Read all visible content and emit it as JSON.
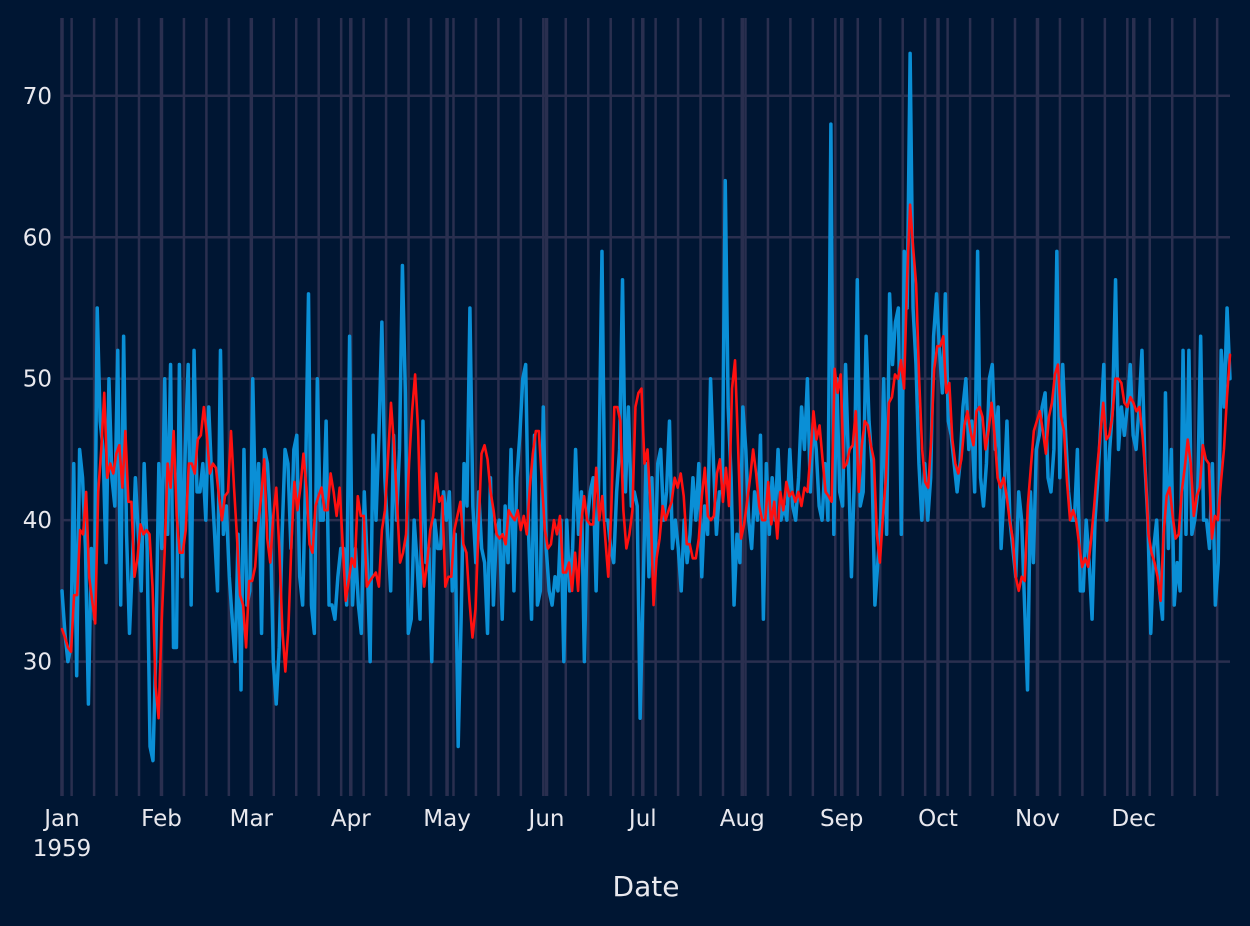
{
  "chart_data": {
    "type": "line",
    "title": "",
    "xlabel": "Date",
    "ylabel": "",
    "year_label": "1959",
    "x_start": "1959-01-01",
    "x_end": "1959-12-31",
    "ylim": [
      20.5,
      75.5
    ],
    "yticks": [
      30,
      40,
      50,
      60,
      70
    ],
    "month_ticks": [
      "Jan",
      "Feb",
      "Mar",
      "Apr",
      "May",
      "Jun",
      "Jul",
      "Aug",
      "Sep",
      "Oct",
      "Nov",
      "Dec"
    ],
    "grid": true,
    "legend": "none",
    "colors": {
      "background": "#001633",
      "grid": "#2a2f4f",
      "series_1": "#0a8fd6",
      "series_2": "#ff1010",
      "text": "#e8e8ee"
    },
    "series": [
      {
        "values": [
          35,
          32,
          30,
          31,
          44,
          29,
          45,
          43,
          38,
          27,
          38,
          33,
          55,
          47,
          45,
          37,
          50,
          43,
          41,
          52,
          34,
          53,
          39,
          32,
          37,
          43,
          39,
          35,
          44,
          38,
          24,
          23,
          31,
          44,
          38,
          50,
          39,
          51,
          31,
          31,
          51,
          36,
          45,
          51,
          34,
          52,
          42,
          42,
          44,
          40,
          48,
          43,
          39,
          35,
          52,
          39,
          41,
          36,
          33,
          30,
          39,
          28,
          45,
          34,
          35,
          50,
          40,
          44,
          32,
          45,
          44,
          40,
          30,
          27,
          31,
          39,
          45,
          44,
          38,
          45,
          46,
          36,
          34,
          43,
          56,
          34,
          32,
          50,
          40,
          40,
          47,
          34,
          34,
          33,
          36,
          38,
          38,
          34,
          53,
          34,
          38,
          34,
          32,
          42,
          37,
          30,
          46,
          40,
          46,
          54,
          43,
          39,
          35,
          46,
          40,
          45,
          58,
          49,
          32,
          33,
          40,
          37,
          33,
          47,
          37,
          38,
          30,
          40,
          38,
          38,
          42,
          40,
          42,
          35,
          39,
          24,
          33,
          44,
          41,
          55,
          41,
          37,
          42,
          38,
          37,
          32,
          43,
          34,
          39,
          40,
          33,
          41,
          37,
          45,
          35,
          43,
          46,
          50,
          51,
          39,
          33,
          46,
          34,
          35,
          48,
          38,
          35,
          34,
          36,
          35,
          40,
          30,
          40,
          35,
          38,
          45,
          39,
          42,
          30,
          40,
          42,
          43,
          35,
          44,
          59,
          40,
          40,
          38,
          37,
          42,
          45,
          57,
          42,
          48,
          41,
          42,
          41,
          26,
          35,
          44,
          36,
          43,
          36,
          44,
          45,
          40,
          42,
          47,
          38,
          40,
          38,
          35,
          40,
          37,
          39,
          43,
          40,
          44,
          36,
          41,
          39,
          50,
          44,
          39,
          42,
          42,
          64,
          48,
          43,
          34,
          39,
          37,
          48,
          45,
          40,
          38,
          42,
          40,
          46,
          33,
          44,
          39,
          43,
          40,
          45,
          40,
          41,
          40,
          45,
          41,
          40,
          43,
          48,
          45,
          50,
          42,
          47,
          45,
          41,
          40,
          44,
          40,
          68,
          39,
          50,
          42,
          41,
          51,
          44,
          36,
          43,
          57,
          41,
          42,
          53,
          47,
          44,
          34,
          37,
          40,
          50,
          39,
          56,
          51,
          54,
          55,
          39,
          59,
          55,
          73,
          55,
          51,
          44,
          40,
          44,
          40,
          43,
          53,
          56,
          52,
          49,
          56,
          47,
          46,
          44,
          42,
          44,
          48,
          50,
          45,
          47,
          42,
          59,
          43,
          41,
          44,
          50,
          51,
          45,
          48,
          38,
          42,
          47,
          40,
          38,
          36,
          42,
          40,
          34,
          28,
          42,
          37,
          45,
          46,
          48,
          49,
          43,
          42,
          45,
          59,
          43,
          51,
          46,
          42,
          40,
          40,
          45,
          35,
          35,
          40,
          37,
          33,
          40,
          43,
          47,
          51,
          40,
          45,
          48,
          57,
          45,
          48,
          46,
          48,
          51,
          46,
          45,
          48,
          52,
          44,
          40,
          32,
          38,
          40,
          35,
          33,
          49,
          38,
          45,
          34,
          37,
          35,
          52,
          39,
          52,
          39,
          40,
          42,
          53,
          40,
          40,
          38,
          44,
          34,
          37,
          52,
          48,
          55,
          50
        ],
        "color": "#0a8fd6"
      },
      {
        "values": [
          32.3,
          31.7,
          31.0,
          30.7,
          34.7,
          34.7,
          39.3,
          39.0,
          42.0,
          36.0,
          34.3,
          32.7,
          42.0,
          45.0,
          49.0,
          43.0,
          44.0,
          43.3,
          44.7,
          45.3,
          42.3,
          46.3,
          41.3,
          41.3,
          36.0,
          37.3,
          39.7,
          39.0,
          39.3,
          39.0,
          35.3,
          28.3,
          26.0,
          32.7,
          37.7,
          44.0,
          42.3,
          46.3,
          40.3,
          37.7,
          37.7,
          39.3,
          44.0,
          44.0,
          43.3,
          45.7,
          46.0,
          48.0,
          46.0,
          43.3,
          44.0,
          43.7,
          41.7,
          40.0,
          41.7,
          42.0,
          46.3,
          42.3,
          38.7,
          34.7,
          34.0,
          31.0,
          35.7,
          35.7,
          36.7,
          39.7,
          41.7,
          44.3,
          38.7,
          37.0,
          40.3,
          42.3,
          38.0,
          32.3,
          29.3,
          32.3,
          38.3,
          42.7,
          40.7,
          42.3,
          44.7,
          42.3,
          38.3,
          37.7,
          41.0,
          41.7,
          42.3,
          40.7,
          40.7,
          43.3,
          42.0,
          40.3,
          42.3,
          38.3,
          34.3,
          35.7,
          37.3,
          36.7,
          41.7,
          40.3,
          40.3,
          35.3,
          35.7,
          36.0,
          36.3,
          35.3,
          39.3,
          40.7,
          44.3,
          48.3,
          45.3,
          41.3,
          37.0,
          37.7,
          39.0,
          44.0,
          47.7,
          50.3,
          46.3,
          38.0,
          35.3,
          37.0,
          39.3,
          40.3,
          43.3,
          41.3,
          41.7,
          35.3,
          36.0,
          36.0,
          39.3,
          40.3,
          41.3,
          38.3,
          37.7,
          34.3,
          31.7,
          33.7,
          39.3,
          44.7,
          45.3,
          44.3,
          42.0,
          40.7,
          39.0,
          38.7,
          39.0,
          38.3,
          40.7,
          40.3,
          40.0,
          40.7,
          39.3,
          40.3,
          39.0,
          42.3,
          44.7,
          46.3,
          46.3,
          42.7,
          39.3,
          38.0,
          38.3,
          40.0,
          39.0,
          40.3,
          36.3,
          36.3,
          37.0,
          35.0,
          37.7,
          35.0,
          39.7,
          41.7,
          40.0,
          39.7,
          39.7,
          43.7,
          40.0,
          41.7,
          38.7,
          36.0,
          40.7,
          48.0,
          48.0,
          47.0,
          40.7,
          38.0,
          39.0,
          40.7,
          48.0,
          49.0,
          49.3,
          44.0,
          45.0,
          41.0,
          34.0,
          37.3,
          38.7,
          41.0,
          40.0,
          40.7,
          41.3,
          43.0,
          42.3,
          43.3,
          41.7,
          38.3,
          38.3,
          37.3,
          37.3,
          38.7,
          41.7,
          43.7,
          40.3,
          40.0,
          40.3,
          43.3,
          44.3,
          41.3,
          43.7,
          41.0,
          49.3,
          51.3,
          45.3,
          38.7,
          39.7,
          41.3,
          43.0,
          45.0,
          43.3,
          41.0,
          40.0,
          40.0,
          42.7,
          39.7,
          41.3,
          38.7,
          42.0,
          40.7,
          42.7,
          41.7,
          42.0,
          41.3,
          42.0,
          41.0,
          42.3,
          42.0,
          44.7,
          47.7,
          45.7,
          46.7,
          44.3,
          42.0,
          41.7,
          41.3,
          50.7,
          49.0,
          50.3,
          43.7,
          44.0,
          45.0,
          45.3,
          47.7,
          42.0,
          45.3,
          47.0,
          46.7,
          45.3,
          44.3,
          39.0,
          37.0,
          40.3,
          43.0,
          48.3,
          48.7,
          50.3,
          50.0,
          51.3,
          49.3,
          57.0,
          62.3,
          59.3,
          56.7,
          50.0,
          45.0,
          42.7,
          42.3,
          45.7,
          50.7,
          52.3,
          52.3,
          53.0,
          49.0,
          49.7,
          45.7,
          44.0,
          43.3,
          44.3,
          46.7,
          47.7,
          46.3,
          45.3,
          47.7,
          48.0,
          47.3,
          45.0,
          46.3,
          48.3,
          46.0,
          43.0,
          42.3,
          43.0,
          41.7,
          40.0,
          38.7,
          36.0,
          35.0,
          36.0,
          35.7,
          41.0,
          43.7,
          46.3,
          47.0,
          47.7,
          46.3,
          44.7,
          47.3,
          48.3,
          50.3,
          51.0,
          47.3,
          46.3,
          42.7,
          40.0,
          40.7,
          40.0,
          38.3,
          36.7,
          37.3,
          36.7,
          38.7,
          41.0,
          43.7,
          46.0,
          48.3,
          45.7,
          46.0,
          47.3,
          50.0,
          50.0,
          49.7,
          48.3,
          48.0,
          48.7,
          48.3,
          47.7,
          48.0,
          46.0,
          43.3,
          39.0,
          37.7,
          37.0,
          36.0,
          34.3,
          39.0,
          41.7,
          42.3,
          40.3,
          38.7,
          39.0,
          42.0,
          43.7,
          45.7,
          44.0,
          40.3,
          41.7,
          42.3,
          45.3,
          44.3,
          44.0,
          38.7,
          40.3,
          40.0,
          42.7,
          45.0,
          48.7,
          51.7
        ],
        "color": "#ff1010"
      }
    ]
  }
}
